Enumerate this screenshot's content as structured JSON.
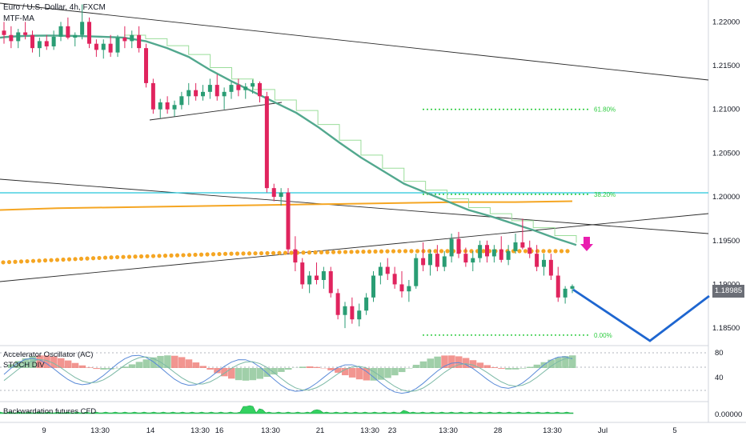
{
  "header": {
    "title": "Euro / U.S. Dollar, 4h, FXCM",
    "indicator": "MTF-MA"
  },
  "pane_titles": {
    "ac": "Accelerator Oscillator (AC)",
    "stoch": "STOCH DIV",
    "futures": "Backwardation futures CFD"
  },
  "last_price": {
    "value": "1.18985",
    "bg": "#6b6e76"
  },
  "colors": {
    "up": "#2a9d74",
    "down": "#e0245e",
    "ma": "#52a88e",
    "ma_step": "#9bdd9b",
    "orange": "#f5a623",
    "cyan": "#26c6da",
    "fib": "#2ecc40",
    "forecast": "#1e66d0",
    "arrow": "#e91eaf",
    "trend": "#2b2b2b"
  },
  "chart_data": {
    "type": "candlestick",
    "symbol": "EURUSD",
    "timeframe": "4h",
    "y_axis": {
      "min": 1.183,
      "max": 1.2225,
      "ticks": [
        "1.22000",
        "1.21500",
        "1.21000",
        "1.20500",
        "1.20000",
        "1.19500",
        "1.19000",
        "1.18500"
      ]
    },
    "x_axis_ticks": [
      "9",
      "13:30",
      "14",
      "13:30",
      "16",
      "13:30",
      "21",
      "13:30",
      "23",
      "13:30",
      "28",
      "13:30",
      "Jul",
      "5"
    ],
    "fib_levels": [
      {
        "label": "61.80%",
        "price": 1.21
      },
      {
        "label": "38.20%",
        "price": 1.2003
      },
      {
        "label": "0.00%",
        "price": 1.1842
      }
    ],
    "candles": [
      [
        1.219,
        1.22,
        1.2175,
        1.2185
      ],
      [
        1.2185,
        1.2195,
        1.217,
        1.2178
      ],
      [
        1.2178,
        1.2192,
        1.217,
        1.2188
      ],
      [
        1.2188,
        1.22,
        1.218,
        1.2185
      ],
      [
        1.2185,
        1.219,
        1.2165,
        1.217
      ],
      [
        1.217,
        1.2182,
        1.216,
        1.2178
      ],
      [
        1.2178,
        1.2185,
        1.2168,
        1.2172
      ],
      [
        1.2172,
        1.219,
        1.2168,
        1.2183
      ],
      [
        1.2183,
        1.22,
        1.2178,
        1.2195
      ],
      [
        1.2195,
        1.2205,
        1.218,
        1.2182
      ],
      [
        1.2182,
        1.2188,
        1.2172,
        1.2185
      ],
      [
        1.2185,
        1.222,
        1.218,
        1.22
      ],
      [
        1.22,
        1.2205,
        1.217,
        1.2175
      ],
      [
        1.2175,
        1.218,
        1.216,
        1.2168
      ],
      [
        1.2168,
        1.218,
        1.2158,
        1.2175
      ],
      [
        1.2175,
        1.2185,
        1.216,
        1.2165
      ],
      [
        1.2165,
        1.2185,
        1.216,
        1.2182
      ],
      [
        1.2182,
        1.2195,
        1.217,
        1.2178
      ],
      [
        1.2178,
        1.219,
        1.217,
        1.2185
      ],
      [
        1.2185,
        1.2195,
        1.2165,
        1.217
      ],
      [
        1.217,
        1.2175,
        1.2125,
        1.213
      ],
      [
        1.213,
        1.2135,
        1.2095,
        1.21
      ],
      [
        1.21,
        1.2112,
        1.209,
        1.2108
      ],
      [
        1.2108,
        1.2115,
        1.2095,
        1.21
      ],
      [
        1.21,
        1.211,
        1.2092,
        1.2105
      ],
      [
        1.2105,
        1.212,
        1.21,
        1.2115
      ],
      [
        1.2115,
        1.213,
        1.2105,
        1.2122
      ],
      [
        1.2122,
        1.213,
        1.211,
        1.2115
      ],
      [
        1.2115,
        1.2128,
        1.211,
        1.212
      ],
      [
        1.212,
        1.2135,
        1.2112,
        1.2128
      ],
      [
        1.2128,
        1.214,
        1.211,
        1.2115
      ],
      [
        1.2115,
        1.2125,
        1.21,
        1.212
      ],
      [
        1.212,
        1.2132,
        1.2112,
        1.2128
      ],
      [
        1.2128,
        1.2135,
        1.2115,
        1.2122
      ],
      [
        1.2122,
        1.213,
        1.2112,
        1.2126
      ],
      [
        1.2126,
        1.2134,
        1.2118,
        1.213
      ],
      [
        1.213,
        1.2132,
        1.2108,
        1.2115
      ],
      [
        1.2115,
        1.212,
        1.2005,
        1.201
      ],
      [
        1.201,
        1.2015,
        1.1995,
        1.2
      ],
      [
        1.2,
        1.201,
        1.199,
        1.2005
      ],
      [
        1.2005,
        1.201,
        1.1935,
        1.194
      ],
      [
        1.194,
        1.1955,
        1.1915,
        1.1925
      ],
      [
        1.1925,
        1.193,
        1.1895,
        1.19
      ],
      [
        1.19,
        1.1915,
        1.189,
        1.191
      ],
      [
        1.191,
        1.1925,
        1.19,
        1.1905
      ],
      [
        1.1905,
        1.192,
        1.1895,
        1.1915
      ],
      [
        1.1915,
        1.192,
        1.1885,
        1.189
      ],
      [
        1.189,
        1.1895,
        1.186,
        1.1865
      ],
      [
        1.1865,
        1.188,
        1.185,
        1.1875
      ],
      [
        1.1875,
        1.1885,
        1.1855,
        1.186
      ],
      [
        1.186,
        1.1878,
        1.1852,
        1.187
      ],
      [
        1.187,
        1.189,
        1.1865,
        1.1885
      ],
      [
        1.1885,
        1.1915,
        1.188,
        1.191
      ],
      [
        1.191,
        1.1925,
        1.19,
        1.192
      ],
      [
        1.192,
        1.193,
        1.1905,
        1.1912
      ],
      [
        1.1912,
        1.192,
        1.1895,
        1.19
      ],
      [
        1.19,
        1.1915,
        1.1885,
        1.1892
      ],
      [
        1.1892,
        1.1905,
        1.188,
        1.1898
      ],
      [
        1.1898,
        1.1935,
        1.1895,
        1.193
      ],
      [
        1.193,
        1.1948,
        1.1915,
        1.1922
      ],
      [
        1.1922,
        1.194,
        1.191,
        1.1935
      ],
      [
        1.1935,
        1.1945,
        1.1915,
        1.192
      ],
      [
        1.192,
        1.1938,
        1.1915,
        1.1932
      ],
      [
        1.1932,
        1.1958,
        1.1925,
        1.1952
      ],
      [
        1.1952,
        1.196,
        1.193,
        1.1935
      ],
      [
        1.1935,
        1.1942,
        1.192,
        1.1925
      ],
      [
        1.1925,
        1.1938,
        1.1915,
        1.193
      ],
      [
        1.193,
        1.195,
        1.1925,
        1.1945
      ],
      [
        1.1945,
        1.195,
        1.1925,
        1.1932
      ],
      [
        1.1932,
        1.1945,
        1.1925,
        1.194
      ],
      [
        1.194,
        1.1955,
        1.1925,
        1.1928
      ],
      [
        1.1928,
        1.1945,
        1.1922,
        1.1938
      ],
      [
        1.1938,
        1.1958,
        1.1935,
        1.1948
      ],
      [
        1.1948,
        1.1975,
        1.194,
        1.1942
      ],
      [
        1.1942,
        1.195,
        1.193,
        1.1935
      ],
      [
        1.1935,
        1.1945,
        1.1915,
        1.192
      ],
      [
        1.192,
        1.1935,
        1.191,
        1.1928
      ],
      [
        1.1928,
        1.1935,
        1.1905,
        1.191
      ],
      [
        1.191,
        1.192,
        1.188,
        1.1885
      ],
      [
        1.1885,
        1.1898,
        1.1878,
        1.1895
      ],
      [
        1.1895,
        1.19,
        1.189,
        1.1898
      ]
    ],
    "mtf_ma": [
      1.2182,
      1.2178,
      1.217,
      1.216,
      1.2145,
      1.2132,
      1.212,
      1.2108,
      1.2096,
      1.208,
      1.2062,
      1.2045,
      1.203,
      1.2015,
      1.2005,
      1.1995,
      1.1985,
      1.1978,
      1.197,
      1.1962,
      1.1953,
      1.1945
    ],
    "ema_orange": [
      1.1985,
      1.1987,
      1.1988,
      1.1989,
      1.199,
      1.1991,
      1.1992,
      1.1993,
      1.1994,
      1.1994,
      1.1995
    ],
    "dotted_ma": [
      1.1925,
      1.1928,
      1.1931,
      1.1933,
      1.1935,
      1.1936,
      1.1937,
      1.1938,
      1.1938,
      1.1938,
      1.1938
    ]
  }
}
